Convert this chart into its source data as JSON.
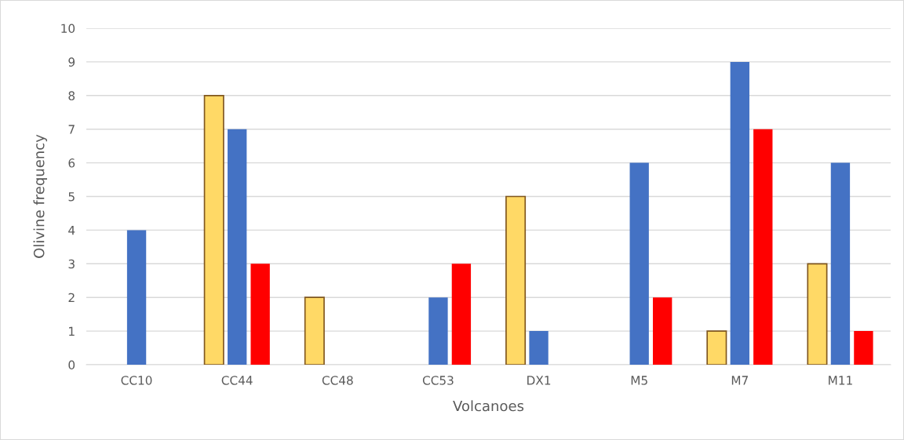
{
  "chart_data": {
    "type": "bar",
    "xlabel": "Volcanoes",
    "ylabel": "Olivine frequency",
    "categories": [
      "CC10",
      "CC44",
      "CC48",
      "CC53",
      "DX1",
      "M5",
      "M7",
      "M11"
    ],
    "series": [
      {
        "color": "#ffd966",
        "values": [
          null,
          8,
          2,
          null,
          5,
          null,
          1,
          3
        ]
      },
      {
        "color": "#4472c4",
        "values": [
          4,
          7,
          null,
          2,
          1,
          6,
          9,
          6
        ]
      },
      {
        "color": "#ff0000",
        "values": [
          null,
          3,
          null,
          3,
          null,
          2,
          7,
          1
        ]
      }
    ],
    "ylim": [
      0,
      10
    ],
    "yticks": [
      0,
      1,
      2,
      3,
      4,
      5,
      6,
      7,
      8,
      9,
      10
    ],
    "grid": "y"
  }
}
